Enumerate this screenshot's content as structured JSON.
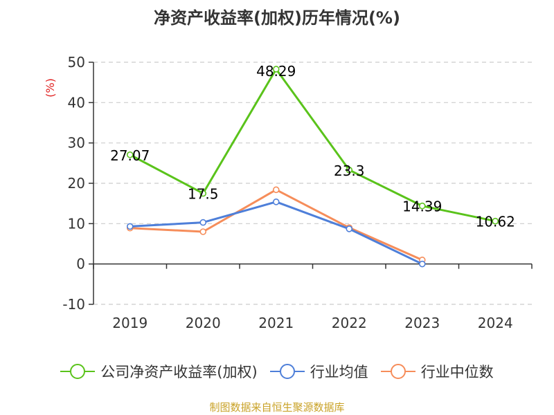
{
  "chart_data": {
    "type": "line",
    "title": "净资产收益率(加权)历年情况(%)",
    "ylabel": "(%)",
    "xlabel": "",
    "categories": [
      "2019",
      "2020",
      "2021",
      "2022",
      "2023",
      "2024"
    ],
    "ylim": [
      -10,
      50
    ],
    "yticks": [
      "50",
      "40",
      "30",
      "20",
      "10",
      "0",
      "-10"
    ],
    "grid": true,
    "legend_position": "bottom",
    "series": [
      {
        "name": "公司净资产收益率(加权)",
        "color": "#5ac31b",
        "values": [
          27.07,
          17.5,
          48.29,
          23.3,
          14.39,
          10.62
        ],
        "labels": [
          "27.07",
          "17.5",
          "48.29",
          "23.3",
          "14.39",
          "10.62"
        ]
      },
      {
        "name": "行业均值",
        "color": "#4e7fd9",
        "values": [
          9.3,
          10.3,
          15.4,
          8.7,
          0.0,
          null
        ],
        "labels": []
      },
      {
        "name": "行业中位数",
        "color": "#f68d5a",
        "values": [
          8.9,
          8.0,
          18.4,
          9.0,
          1.0,
          null
        ],
        "labels": []
      }
    ]
  },
  "footer": {
    "source": "制图数据来自恒生聚源数据库"
  },
  "colors": {
    "title": "#333333",
    "axis": "#333333",
    "grid": "#cccccc",
    "ylabel": "#e02020",
    "source": "#c9a227"
  }
}
